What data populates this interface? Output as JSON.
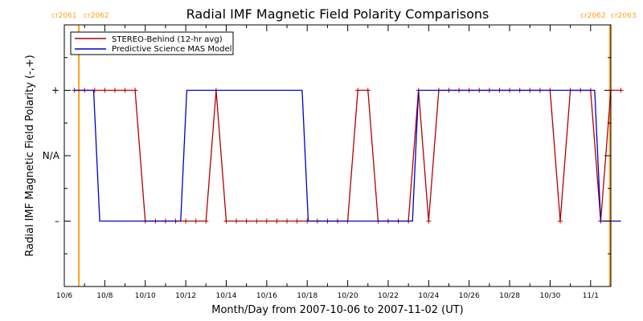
{
  "chart_data": {
    "type": "line",
    "title": "Radial IMF Magnetic Field Polarity Comparisons",
    "xlabel": "Month/Day from 2007-10-06 to 2007-11-02 (UT)",
    "ylabel": "Radial IMF Magnetic Field Polarity (-,+)",
    "x_start": "2007-10-06",
    "x_range_days": [
      0,
      27
    ],
    "y_range": [
      -2.0,
      2.0
    ],
    "yticks": [
      {
        "value": 1,
        "label": "+"
      },
      {
        "value": 0,
        "label": "N/A"
      },
      {
        "value": -1,
        "label": "–"
      }
    ],
    "xticks": [
      {
        "day": 0,
        "label": "10/6"
      },
      {
        "day": 2,
        "label": "10/8"
      },
      {
        "day": 4,
        "label": "10/10"
      },
      {
        "day": 6,
        "label": "10/12"
      },
      {
        "day": 8,
        "label": "10/14"
      },
      {
        "day": 10,
        "label": "10/16"
      },
      {
        "day": 12,
        "label": "10/18"
      },
      {
        "day": 14,
        "label": "10/20"
      },
      {
        "day": 16,
        "label": "10/22"
      },
      {
        "day": 18,
        "label": "10/24"
      },
      {
        "day": 20,
        "label": "10/26"
      },
      {
        "day": 22,
        "label": "10/28"
      },
      {
        "day": 24,
        "label": "10/30"
      },
      {
        "day": 26,
        "label": "11/1"
      }
    ],
    "carrington_markers": [
      {
        "day": 0.72,
        "left_label": "cr2061",
        "right_label": "cr2062"
      },
      {
        "day": 26.95,
        "left_label": "cr2062",
        "right_label": "cr2063"
      }
    ],
    "marker_color": "#ff9f1c",
    "series": [
      {
        "name": "STEREO-Behind (12-hr avg)",
        "color": "#b40000",
        "markers": true,
        "points": [
          [
            0.5,
            1
          ],
          [
            1.0,
            1
          ],
          [
            1.5,
            1
          ],
          [
            2.0,
            1
          ],
          [
            2.5,
            1
          ],
          [
            3.0,
            1
          ],
          [
            3.5,
            1
          ],
          [
            4.0,
            -1
          ],
          [
            4.5,
            -1
          ],
          [
            5.0,
            -1
          ],
          [
            5.5,
            -1
          ],
          [
            6.0,
            -1
          ],
          [
            6.5,
            -1
          ],
          [
            7.0,
            -1
          ],
          [
            7.5,
            1
          ],
          [
            8.0,
            -1
          ],
          [
            8.5,
            -1
          ],
          [
            9.0,
            -1
          ],
          [
            9.5,
            -1
          ],
          [
            10.0,
            -1
          ],
          [
            10.5,
            -1
          ],
          [
            11.0,
            -1
          ],
          [
            11.5,
            -1
          ],
          [
            12.0,
            -1
          ],
          [
            12.5,
            -1
          ],
          [
            13.0,
            -1
          ],
          [
            13.5,
            -1
          ],
          [
            14.0,
            -1
          ],
          [
            14.5,
            1
          ],
          [
            15.0,
            1
          ],
          [
            15.5,
            -1
          ],
          [
            16.0,
            -1
          ],
          [
            16.5,
            -1
          ],
          [
            17.0,
            -1
          ],
          [
            17.5,
            1
          ],
          [
            18.0,
            -1
          ],
          [
            18.5,
            1
          ],
          [
            19.0,
            1
          ],
          [
            19.5,
            1
          ],
          [
            20.0,
            1
          ],
          [
            20.5,
            1
          ],
          [
            21.0,
            1
          ],
          [
            21.5,
            1
          ],
          [
            22.0,
            1
          ],
          [
            22.5,
            1
          ],
          [
            23.0,
            1
          ],
          [
            23.5,
            1
          ],
          [
            24.0,
            1
          ],
          [
            24.5,
            -1
          ],
          [
            25.0,
            1
          ],
          [
            25.5,
            1
          ],
          [
            26.0,
            1
          ],
          [
            26.5,
            -1
          ],
          [
            27.0,
            1
          ],
          [
            27.5,
            1
          ]
        ]
      },
      {
        "name": "Predictive Science MAS Model",
        "color": "#0000c8",
        "markers": false,
        "points": [
          [
            0.5,
            1
          ],
          [
            1.45,
            1
          ],
          [
            1.75,
            -1
          ],
          [
            5.75,
            -1
          ],
          [
            6.05,
            1
          ],
          [
            11.75,
            1
          ],
          [
            12.05,
            -1
          ],
          [
            17.2,
            -1
          ],
          [
            17.5,
            1
          ],
          [
            26.2,
            1
          ],
          [
            26.5,
            -1
          ],
          [
            27.5,
            -1
          ]
        ]
      }
    ],
    "legend_placement": "top-left",
    "grid": false
  }
}
